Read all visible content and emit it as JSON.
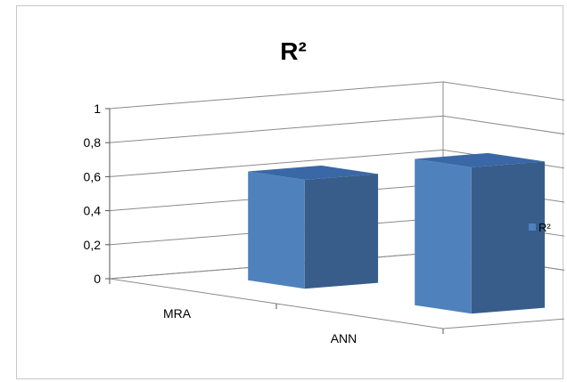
{
  "chart_data": {
    "type": "bar",
    "title": "R²",
    "categories": [
      "MRA",
      "ANN"
    ],
    "series": [
      {
        "name": "R²",
        "values": [
          0.64,
          0.86
        ]
      }
    ],
    "yticks": [
      "0",
      "0,2",
      "0,4",
      "0,6",
      "0,8",
      "1"
    ],
    "ylim": [
      0,
      1
    ],
    "grid": true,
    "legend": "right",
    "style": "3d-column"
  },
  "colors": {
    "bar_front": "#4f81bd",
    "bar_side": "#385d8a",
    "bar_top": "#3a68a6",
    "grid": "#8a8a8a"
  }
}
